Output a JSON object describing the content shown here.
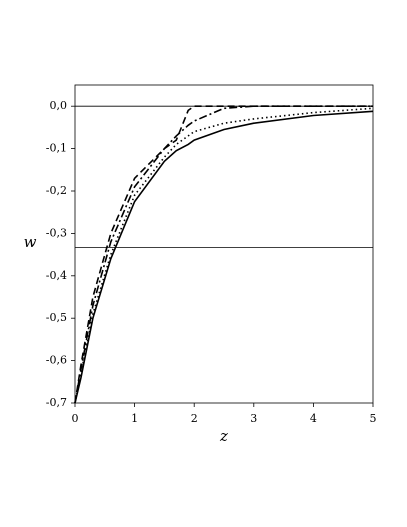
{
  "chart_data": {
    "type": "line",
    "xlabel": "z",
    "ylabel": "w",
    "x": [
      0,
      0.1,
      0.3,
      0.6,
      1,
      1.5,
      1.7,
      1.9,
      2,
      2.5,
      3,
      4,
      5
    ],
    "series": [
      {
        "color": "#000000",
        "dash": "solid",
        "values": [
          -0.7,
          -0.64,
          -0.5,
          -0.36,
          -0.225,
          -0.13,
          -0.105,
          -0.09,
          -0.08,
          -0.055,
          -0.04,
          -0.022,
          -0.012
        ]
      },
      {
        "color": "#000000",
        "dash": "dotted",
        "values": [
          -0.7,
          -0.63,
          -0.49,
          -0.35,
          -0.21,
          -0.12,
          -0.09,
          -0.07,
          -0.06,
          -0.04,
          -0.03,
          -0.015,
          -0.005
        ]
      },
      {
        "color": "#000000",
        "dash": "dashdot",
        "values": [
          -0.7,
          -0.62,
          -0.47,
          -0.32,
          -0.19,
          -0.1,
          -0.07,
          -0.045,
          -0.035,
          -0.005,
          0,
          0,
          0
        ]
      },
      {
        "color": "#000000",
        "dash": "dashed",
        "values": [
          -0.7,
          -0.61,
          -0.45,
          -0.3,
          -0.17,
          -0.1,
          -0.08,
          -0.01,
          0,
          0,
          0,
          0,
          0
        ]
      }
    ],
    "hlines": [
      0,
      -0.333
    ],
    "xlim": [
      0,
      5
    ],
    "ylim": [
      -0.7,
      0.05
    ],
    "xticks": [
      0,
      1,
      2,
      3,
      4,
      5
    ],
    "yticks": [
      {
        "value": 0,
        "label": "0,0"
      },
      {
        "value": -0.1,
        "label": "-0,1"
      },
      {
        "value": -0.2,
        "label": "-0,2"
      },
      {
        "value": -0.3,
        "label": "-0,3"
      },
      {
        "value": -0.4,
        "label": "-0,4"
      },
      {
        "value": -0.5,
        "label": "-0,5"
      },
      {
        "value": -0.6,
        "label": "-0,6"
      },
      {
        "value": -0.7,
        "label": "-0,7"
      }
    ]
  }
}
